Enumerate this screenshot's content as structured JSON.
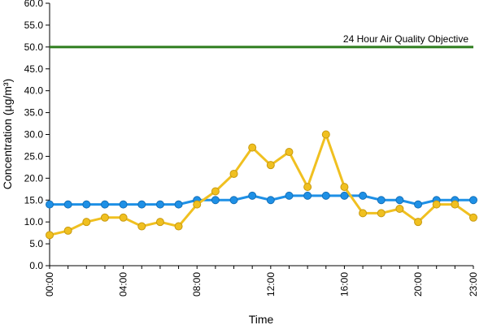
{
  "chart_data": {
    "type": "line",
    "xlabel": "Time",
    "ylabel": "Concentration (µg/m³)",
    "ylim": [
      0,
      60
    ],
    "y_ticks": [
      "0.0",
      "5.0",
      "10.0",
      "15.0",
      "20.0",
      "25.0",
      "30.0",
      "35.0",
      "40.0",
      "45.0",
      "50.0",
      "55.0",
      "60.0"
    ],
    "x_ticks": [
      "00:00",
      "04:00",
      "08:00",
      "12:00",
      "16:00",
      "20:00",
      "23:00"
    ],
    "x_tick_hours": [
      0,
      4,
      8,
      12,
      16,
      20,
      23
    ],
    "x_hours": [
      0,
      1,
      2,
      3,
      4,
      5,
      6,
      7,
      8,
      9,
      10,
      11,
      12,
      13,
      14,
      15,
      16,
      17,
      18,
      19,
      20,
      21,
      22,
      23
    ],
    "series": [
      {
        "color": "#1e90e6",
        "values": [
          14,
          14,
          14,
          14,
          14,
          14,
          14,
          14,
          15,
          15,
          15,
          16,
          15,
          16,
          16,
          16,
          16,
          16,
          15,
          15,
          14,
          15,
          15,
          15
        ]
      },
      {
        "color": "#f0c020",
        "values": [
          7,
          8,
          10,
          11,
          11,
          9,
          10,
          9,
          14,
          17,
          21,
          27,
          23,
          26,
          18,
          30,
          18,
          12,
          12,
          13,
          10,
          14,
          14,
          11
        ]
      }
    ],
    "reference_line": {
      "value": 50,
      "label": "24 Hour Air Quality Objective",
      "color": "#2e7d1e"
    },
    "grid": false,
    "legend": "none"
  }
}
